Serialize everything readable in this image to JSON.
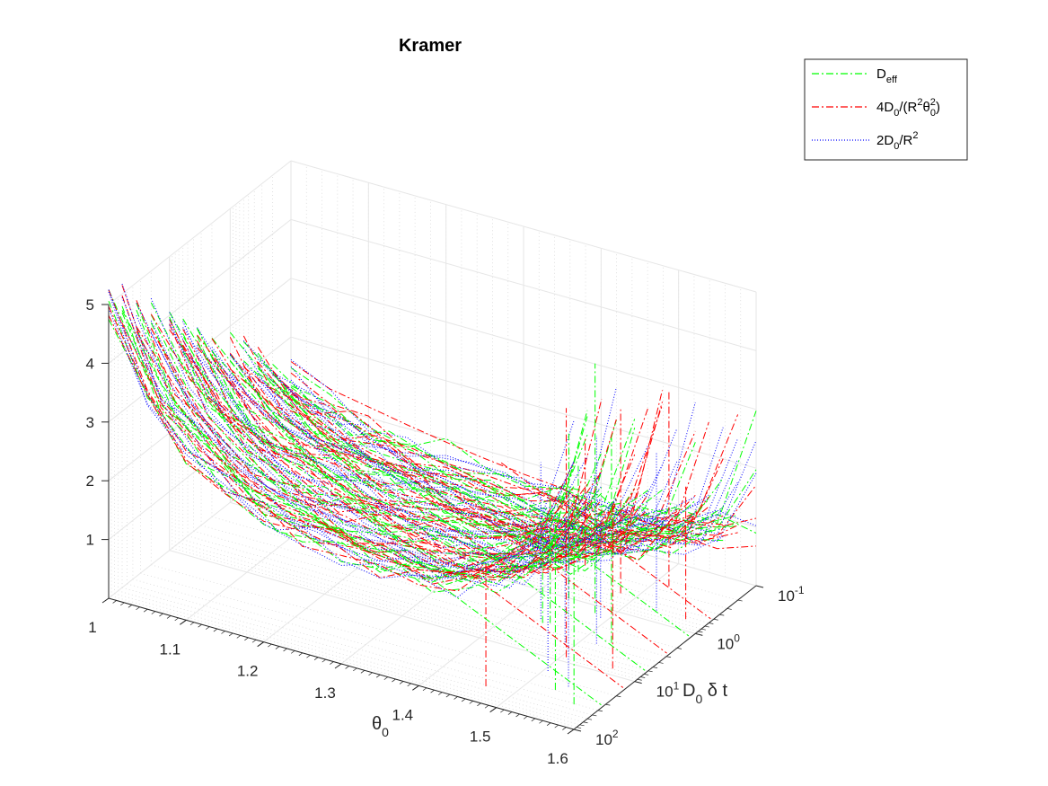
{
  "chart_data": {
    "type": "line",
    "projection": "3d",
    "title": "Kramer",
    "x_axis": {
      "label_main": "θ",
      "label_sub": "0",
      "range": [
        1,
        1.6
      ],
      "ticks": [
        1,
        1.1,
        1.2,
        1.3,
        1.4,
        1.5,
        1.6
      ],
      "tick_labels": [
        "1",
        "1.1",
        "1.2",
        "1.3",
        "1.4",
        "1.5",
        "1.6"
      ]
    },
    "y_axis": {
      "label_main": "D",
      "label_sub": "0",
      "label_rest": " δ t",
      "scale": "log",
      "direction": "reversed",
      "range": [
        0.1,
        100
      ],
      "ticks": [
        0.1,
        1,
        10,
        100
      ],
      "tick_labels": [
        {
          "base": "10",
          "exp": "-1"
        },
        {
          "base": "10",
          "exp": "0"
        },
        {
          "base": "10",
          "exp": "1"
        },
        {
          "base": "10",
          "exp": "2"
        }
      ]
    },
    "z_axis": {
      "range": [
        0,
        5
      ],
      "ticks": [
        1,
        2,
        3,
        4,
        5
      ],
      "tick_labels": [
        "1",
        "2",
        "3",
        "4",
        "5"
      ]
    },
    "grid": true,
    "legend_position": "top-right",
    "series": [
      {
        "name_main": "D",
        "name_sub": "eff",
        "color": "#00ff00",
        "dash": "dash-dot"
      },
      {
        "name_main": "4D",
        "name_sub1": "0",
        "name_mid": "/(R",
        "name_sup": "2",
        "name_theta": "θ",
        "name_sup2": "2",
        "name_sub2": "0",
        "name_end": ")",
        "color": "#ff0000",
        "dash": "dash-dot"
      },
      {
        "name_main": "2D",
        "name_sub": "0",
        "name_mid": "/R",
        "name_sup": "2",
        "color": "#0000ff",
        "dash": "dotted"
      }
    ],
    "x_values": [
      1.0,
      1.05,
      1.1,
      1.15,
      1.2,
      1.25,
      1.3,
      1.35,
      1.4,
      1.45,
      1.5,
      1.55,
      1.6
    ],
    "y_values": [
      0.1,
      0.2,
      0.35,
      0.6,
      1,
      2,
      3.5,
      6,
      10,
      20,
      35,
      60,
      100
    ],
    "z_base_curve": [
      4.6,
      3.3,
      2.6,
      2.2,
      1.9,
      1.75,
      1.65,
      1.6,
      1.62,
      1.75,
      2.0,
      2.6,
      3.6
    ]
  }
}
